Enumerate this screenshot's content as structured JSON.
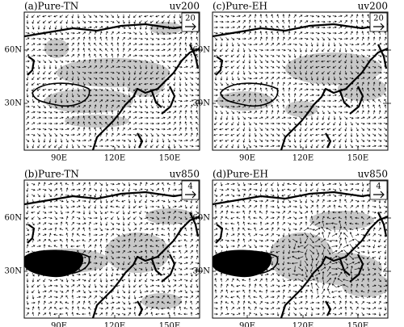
{
  "panels": [
    {
      "label": "(a)Pure-TN",
      "level": "uv200",
      "ref": "20"
    },
    {
      "label": "(c)Pure-EH",
      "level": "uv200",
      "ref": "20"
    },
    {
      "label": "(b)Pure-TN",
      "level": "uv850",
      "ref": "4"
    },
    {
      "label": "(d)Pure-EH",
      "level": "uv850",
      "ref": "4"
    }
  ],
  "axes": {
    "lat": [
      "60N",
      "30N"
    ],
    "lon": [
      "90E",
      "120E",
      "150E"
    ]
  }
}
